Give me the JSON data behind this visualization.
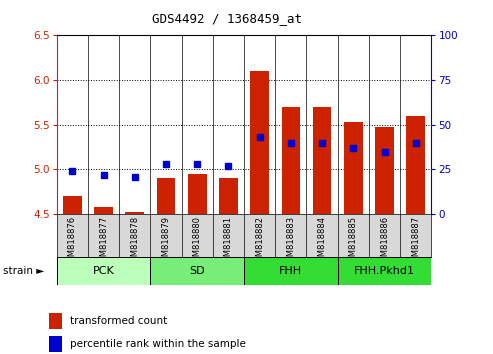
{
  "title": "GDS4492 / 1368459_at",
  "samples": [
    "GSM818876",
    "GSM818877",
    "GSM818878",
    "GSM818879",
    "GSM818880",
    "GSM818881",
    "GSM818882",
    "GSM818883",
    "GSM818884",
    "GSM818885",
    "GSM818886",
    "GSM818887"
  ],
  "transformed_count": [
    4.7,
    4.58,
    4.52,
    4.9,
    4.95,
    4.9,
    6.1,
    5.7,
    5.7,
    5.53,
    5.47,
    5.6
  ],
  "percentile_rank": [
    24,
    22,
    21,
    28,
    28,
    27,
    43,
    40,
    40,
    37,
    35,
    40
  ],
  "ylim_left": [
    4.5,
    6.5
  ],
  "ylim_right": [
    0,
    100
  ],
  "yticks_left": [
    4.5,
    5.0,
    5.5,
    6.0,
    6.5
  ],
  "yticks_right": [
    0,
    25,
    50,
    75,
    100
  ],
  "bar_color": "#cc2200",
  "dot_color": "#0000cc",
  "baseline": 4.5,
  "groups": [
    {
      "label": "PCK",
      "start": 0,
      "end": 3,
      "color": "#bbffbb"
    },
    {
      "label": "SD",
      "start": 3,
      "end": 6,
      "color": "#77ee77"
    },
    {
      "label": "FHH",
      "start": 6,
      "end": 9,
      "color": "#33dd33"
    },
    {
      "label": "FHH.Pkhd1",
      "start": 9,
      "end": 12,
      "color": "#33dd33"
    }
  ],
  "left_axis_color": "#cc2200",
  "right_axis_color": "#0000cc",
  "legend_items": [
    {
      "color": "#cc2200",
      "label": "transformed count"
    },
    {
      "color": "#0000cc",
      "label": "percentile rank within the sample"
    }
  ]
}
